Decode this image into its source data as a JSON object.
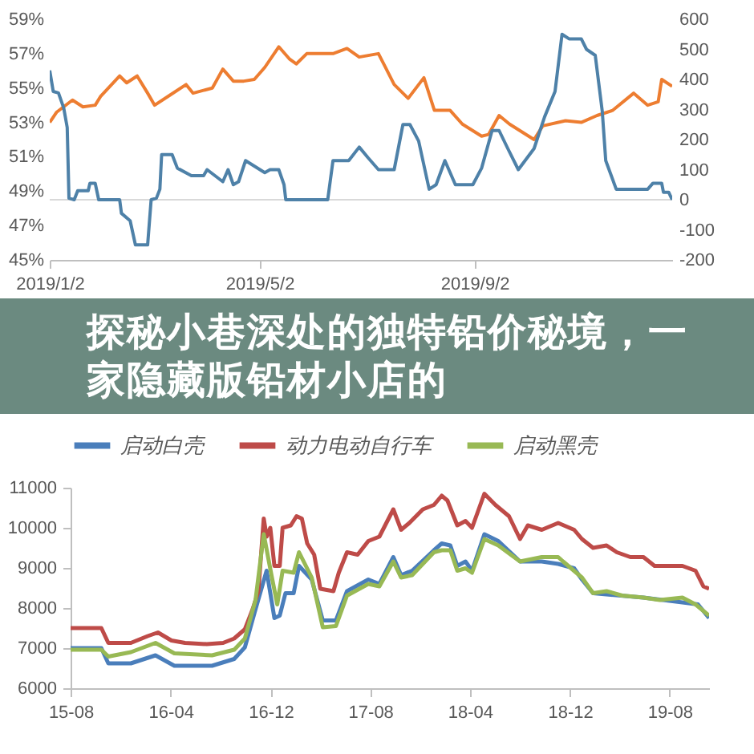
{
  "chart_data": [
    {
      "type": "line",
      "xlim": [
        "2019-01-02",
        "2019-12-24"
      ],
      "xticks": [
        {
          "value": "2019-01-02",
          "label": "2019/1/2"
        },
        {
          "value": "2019-05-02",
          "label": "2019/5/2"
        },
        {
          "value": "2019-09-02",
          "label": "2019/9/2"
        }
      ],
      "ylim": [
        45,
        59
      ],
      "yticks": [
        {
          "value": 45,
          "label": "45%"
        },
        {
          "value": 47,
          "label": "47%"
        },
        {
          "value": 49,
          "label": "49%"
        },
        {
          "value": 51,
          "label": "51%"
        },
        {
          "value": 53,
          "label": "53%"
        },
        {
          "value": 55,
          "label": "55%"
        },
        {
          "value": 57,
          "label": "57%"
        },
        {
          "value": 59,
          "label": "59%"
        }
      ],
      "y2lim": [
        -200,
        600
      ],
      "y2ticks": [
        -200,
        -100,
        0,
        100,
        200,
        300,
        400,
        500,
        600
      ],
      "ref_lines": [
        {
          "axis": "y2",
          "value": 0,
          "color": "#d9d9d9"
        }
      ],
      "series": [
        {
          "color": "#ed7d31",
          "x": [
            "2019-01-02",
            "2019-01-06",
            "2019-01-15",
            "2019-01-21",
            "2019-01-28",
            "2019-01-31",
            "2019-02-11",
            "2019-02-15",
            "2019-02-21",
            "2019-02-27",
            "2019-03-03",
            "2019-03-12",
            "2019-03-21",
            "2019-03-25",
            "2019-04-05",
            "2019-04-11",
            "2019-04-17",
            "2019-04-23",
            "2019-04-29",
            "2019-05-05",
            "2019-05-13",
            "2019-05-19",
            "2019-05-23",
            "2019-05-29",
            "2019-06-07",
            "2019-06-13",
            "2019-06-21",
            "2019-06-28",
            "2019-07-09",
            "2019-07-12",
            "2019-07-18",
            "2019-07-26",
            "2019-08-04",
            "2019-08-10",
            "2019-08-19",
            "2019-08-26",
            "2019-09-06",
            "2019-09-10",
            "2019-09-16",
            "2019-09-22",
            "2019-10-06",
            "2019-10-11",
            "2019-10-24",
            "2019-11-02",
            "2019-11-11",
            "2019-11-20",
            "2019-12-02",
            "2019-12-10",
            "2019-12-16",
            "2019-12-18",
            "2019-12-24"
          ],
          "values": [
            53.0,
            53.6,
            54.3,
            53.9,
            54.0,
            54.5,
            55.7,
            55.3,
            55.7,
            54.7,
            54.0,
            54.6,
            55.2,
            54.7,
            55.0,
            56.1,
            55.4,
            55.4,
            55.5,
            56.2,
            57.4,
            56.7,
            56.4,
            57.0,
            57.0,
            57.0,
            57.3,
            56.8,
            57.0,
            56.4,
            55.2,
            54.4,
            55.6,
            53.7,
            53.7,
            52.9,
            52.2,
            52.3,
            53.4,
            52.9,
            52.0,
            52.8,
            53.1,
            53.0,
            53.4,
            53.7,
            54.7,
            54.0,
            54.2,
            55.5,
            55.1
          ]
        },
        {
          "color": "#4e81a8",
          "axis": "y2",
          "x": [
            "2019-01-02",
            "2019-01-04",
            "2019-01-07",
            "2019-01-10",
            "2019-01-12",
            "2019-01-13",
            "2019-01-16",
            "2019-01-18",
            "2019-01-24",
            "2019-01-25",
            "2019-01-28",
            "2019-01-30",
            "2019-02-11",
            "2019-02-12",
            "2019-02-17",
            "2019-02-20",
            "2019-02-27",
            "2019-03-01",
            "2019-03-04",
            "2019-03-06",
            "2019-03-07",
            "2019-03-13",
            "2019-03-16",
            "2019-03-24",
            "2019-03-31",
            "2019-04-02",
            "2019-04-11",
            "2019-04-14",
            "2019-04-17",
            "2019-04-20",
            "2019-04-24",
            "2019-05-05",
            "2019-05-08",
            "2019-05-13",
            "2019-05-16",
            "2019-05-17",
            "2019-06-10",
            "2019-06-13",
            "2019-06-22",
            "2019-06-28",
            "2019-07-03",
            "2019-07-09",
            "2019-07-18",
            "2019-07-23",
            "2019-07-27",
            "2019-08-01",
            "2019-08-07",
            "2019-08-11",
            "2019-08-16",
            "2019-08-22",
            "2019-09-01",
            "2019-09-06",
            "2019-09-12",
            "2019-09-16",
            "2019-09-21",
            "2019-09-27",
            "2019-10-06",
            "2019-10-12",
            "2019-10-18",
            "2019-10-22",
            "2019-10-26",
            "2019-11-02",
            "2019-11-05",
            "2019-11-10",
            "2019-11-14",
            "2019-11-16",
            "2019-11-22",
            "2019-12-10",
            "2019-12-13",
            "2019-12-18",
            "2019-12-19",
            "2019-12-22",
            "2019-12-24"
          ],
          "values": [
            430,
            360,
            355,
            305,
            240,
            5,
            0,
            30,
            30,
            55,
            55,
            0,
            0,
            -45,
            -70,
            -150,
            -150,
            0,
            5,
            35,
            150,
            150,
            105,
            80,
            80,
            100,
            60,
            100,
            50,
            60,
            130,
            90,
            100,
            100,
            50,
            0,
            0,
            130,
            130,
            175,
            140,
            100,
            100,
            250,
            250,
            195,
            35,
            50,
            130,
            50,
            50,
            105,
            230,
            230,
            170,
            100,
            170,
            275,
            360,
            550,
            535,
            535,
            500,
            480,
            295,
            130,
            35,
            35,
            55,
            55,
            25,
            25,
            0
          ]
        }
      ]
    },
    {
      "type": "line",
      "title": "探秘小巷深处的独特铅价秘境，一家隐藏版铅材小店的",
      "legend": "top",
      "xlim": [
        "2015-08-01",
        "2019-11-05"
      ],
      "xticks": [
        {
          "value": "2015-08-01",
          "label": "15-08"
        },
        {
          "value": "2016-04-01",
          "label": "16-04"
        },
        {
          "value": "2016-12-01",
          "label": "16-12"
        },
        {
          "value": "2017-08-01",
          "label": "17-08"
        },
        {
          "value": "2018-04-01",
          "label": "18-04"
        },
        {
          "value": "2018-12-01",
          "label": "18-12"
        },
        {
          "value": "2019-08-01",
          "label": "19-08"
        }
      ],
      "ylim": [
        6000,
        11000
      ],
      "yticks": [
        6000,
        7000,
        8000,
        9000,
        10000,
        11000
      ],
      "series": [
        {
          "name": "启动白壳",
          "color": "#4a7ebb",
          "x": [
            "2015-08-01",
            "2015-10-15",
            "2015-11-01",
            "2015-12-26",
            "2016-02-24",
            "2016-04-10",
            "2016-07-11",
            "2016-09-03",
            "2016-09-29",
            "2016-10-25",
            "2016-11-21",
            "2016-12-10",
            "2016-12-23",
            "2017-01-06",
            "2017-01-26",
            "2017-02-08",
            "2017-03-11",
            "2017-04-07",
            "2017-05-09",
            "2017-06-05",
            "2017-07-27",
            "2017-08-23",
            "2017-09-26",
            "2017-10-15",
            "2017-11-11",
            "2018-01-03",
            "2018-01-22",
            "2018-02-12",
            "2018-03-01",
            "2018-03-21",
            "2018-04-06",
            "2018-05-06",
            "2018-06-09",
            "2018-08-01",
            "2018-09-23",
            "2018-11-02",
            "2018-12-11",
            "2018-12-30",
            "2019-01-26",
            "2019-05-29",
            "2019-09-01",
            "2019-10-09",
            "2019-11-05"
          ],
          "values": [
            7000,
            7000,
            6620,
            6620,
            6820,
            6560,
            6560,
            6730,
            7020,
            7970,
            8930,
            7750,
            7810,
            8370,
            8370,
            9050,
            8710,
            7690,
            7690,
            8420,
            8710,
            8600,
            9270,
            8820,
            8930,
            9440,
            9610,
            9560,
            9050,
            9160,
            8930,
            9840,
            9670,
            9160,
            9160,
            9100,
            8990,
            8710,
            8370,
            8260,
            8140,
            8090,
            7750
          ]
        },
        {
          "name": "动力电动自行车",
          "color": "#be4b48",
          "x": [
            "2015-08-01",
            "2015-10-15",
            "2015-11-01",
            "2015-12-26",
            "2016-02-05",
            "2016-03-01",
            "2016-04-03",
            "2016-05-06",
            "2016-06-28",
            "2016-08-07",
            "2016-09-03",
            "2016-09-29",
            "2016-10-18",
            "2016-11-01",
            "2016-11-14",
            "2016-11-21",
            "2016-11-30",
            "2016-12-10",
            "2016-12-23",
            "2016-12-30",
            "2017-01-19",
            "2017-02-02",
            "2017-02-15",
            "2017-02-28",
            "2017-03-17",
            "2017-04-01",
            "2017-05-03",
            "2017-05-16",
            "2017-06-05",
            "2017-07-01",
            "2017-07-27",
            "2017-08-23",
            "2017-09-26",
            "2017-10-15",
            "2017-11-04",
            "2017-12-07",
            "2018-01-03",
            "2018-01-22",
            "2018-02-05",
            "2018-03-01",
            "2018-03-21",
            "2018-04-06",
            "2018-05-06",
            "2018-06-02",
            "2018-07-05",
            "2018-08-01",
            "2018-08-20",
            "2018-09-23",
            "2018-11-02",
            "2018-12-11",
            "2018-12-30",
            "2019-01-26",
            "2019-02-28",
            "2019-03-25",
            "2019-04-27",
            "2019-05-29",
            "2019-06-25",
            "2019-07-21",
            "2019-09-01",
            "2019-10-03",
            "2019-10-22",
            "2019-11-05"
          ],
          "values": [
            7500,
            7500,
            7130,
            7130,
            7300,
            7390,
            7190,
            7130,
            7100,
            7130,
            7240,
            7470,
            7970,
            8420,
            10230,
            9780,
            10000,
            9050,
            9050,
            10000,
            10060,
            10290,
            10230,
            9610,
            9330,
            8480,
            8420,
            8880,
            9390,
            9330,
            9670,
            9780,
            10460,
            9950,
            10120,
            10460,
            10570,
            10800,
            10680,
            10060,
            10170,
            10000,
            10850,
            10570,
            10290,
            9720,
            10060,
            9950,
            10120,
            9950,
            9720,
            9500,
            9560,
            9390,
            9270,
            9270,
            9050,
            9050,
            9050,
            8930,
            8540,
            8480
          ]
        },
        {
          "name": "启动黑壳",
          "color": "#98b954",
          "x": [
            "2015-08-01",
            "2015-10-15",
            "2015-11-01",
            "2015-12-26",
            "2016-02-24",
            "2016-04-10",
            "2016-07-11",
            "2016-09-03",
            "2016-09-29",
            "2016-10-25",
            "2016-11-14",
            "2016-12-04",
            "2016-12-17",
            "2016-12-30",
            "2017-01-26",
            "2017-02-08",
            "2017-03-11",
            "2017-04-07",
            "2017-05-09",
            "2017-06-05",
            "2017-07-27",
            "2017-08-23",
            "2017-09-26",
            "2017-10-15",
            "2017-11-11",
            "2018-01-03",
            "2018-01-22",
            "2018-02-12",
            "2018-03-01",
            "2018-03-21",
            "2018-04-06",
            "2018-05-06",
            "2018-06-09",
            "2018-08-01",
            "2018-09-23",
            "2018-11-02",
            "2018-11-14",
            "2018-12-30",
            "2019-01-26",
            "2019-02-28",
            "2019-04-07",
            "2019-05-29",
            "2019-07-08",
            "2019-09-01",
            "2019-10-03",
            "2019-11-05"
          ],
          "values": [
            6960,
            6960,
            6790,
            6900,
            7130,
            6870,
            6820,
            6960,
            7240,
            8200,
            9840,
            8760,
            8090,
            8930,
            8880,
            9390,
            8760,
            7520,
            7550,
            8310,
            8600,
            8540,
            9160,
            8760,
            8820,
            9390,
            9440,
            9440,
            8930,
            8990,
            8880,
            9720,
            9560,
            9160,
            9270,
            9270,
            9160,
            8760,
            8370,
            8420,
            8310,
            8260,
            8200,
            8260,
            8090,
            7810
          ]
        }
      ]
    }
  ]
}
